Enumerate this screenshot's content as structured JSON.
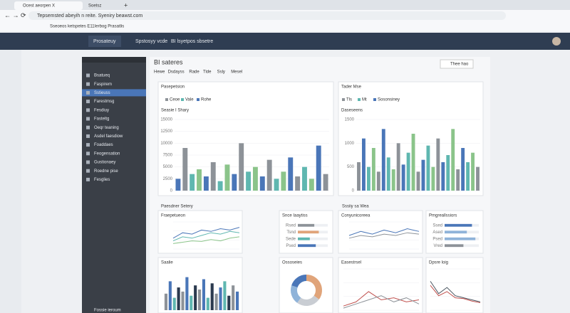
{
  "browser": {
    "tabs": [
      "Ocest aeorpen X",
      "Soetsz",
      "+"
    ],
    "url": "Tepsemsted abeyih  n  reite. Syeniry beawst.com",
    "bookmarks": "Sseoeos ketspetes E11Ierbog Prasatlis"
  },
  "header": {
    "brand": "Prosateuy",
    "nav": [
      "Spstosyy vcde",
      "BI lsyetpos sbsetre"
    ]
  },
  "sidebar": {
    "items": [
      "Bsatueq",
      "Faspirem",
      "Sstieuss",
      "Farestmsg",
      "Fesdiuy",
      "Fasteltg",
      "Oeqr teaning",
      "Asdel faesdiow",
      "Foaddaes",
      "Feogensation",
      "Gustionaey",
      "Roedne pise",
      "Fesglies"
    ],
    "footer": "Fossie ieroum"
  },
  "main": {
    "title": "BI sateres",
    "tabs": [
      "Hewe",
      "Dsdayss",
      "Rade",
      "Tide",
      "Ssly",
      "Mesel"
    ],
    "button": "Thee hao",
    "sections": [
      "Paesdner Setery",
      "Sssiiy sa Wea"
    ]
  },
  "panels": [
    {
      "title": "Pasepetsion",
      "legend": [
        "Ceoe",
        "Vale",
        "Rohe"
      ]
    },
    {
      "title": "Tader Mse",
      "legend": [
        "Tls",
        "Mt",
        "Sosonsiney"
      ]
    }
  ],
  "chart_data": [
    {
      "type": "bar",
      "title": "Seasie I Shary",
      "colors": [
        "#4a76b8",
        "#8d9298",
        "#5fb7b0",
        "#8bc48a"
      ],
      "values": [
        2500,
        9000,
        3500,
        4500,
        3000,
        6000,
        2000,
        5500,
        3500,
        10000,
        4000,
        5000,
        3000,
        6500,
        2500,
        4000,
        7000,
        3000,
        5000,
        2500,
        9500,
        3500
      ],
      "ylim": [
        0,
        15000
      ],
      "yticks": [
        0,
        2500,
        5000,
        7500,
        10000,
        12500,
        15000
      ]
    },
    {
      "type": "bar",
      "title": "Daseseens",
      "colors": [
        "#8d9298",
        "#4a76b8",
        "#5fb7b0",
        "#8bc48a"
      ],
      "values": [
        600,
        1100,
        500,
        900,
        400,
        1300,
        700,
        450,
        1000,
        550,
        800,
        1200,
        400,
        650,
        950,
        500,
        1100,
        600,
        750,
        1300,
        450,
        900,
        600,
        800,
        500
      ],
      "ylim": [
        0,
        1500
      ],
      "yticks": [
        0,
        500,
        1000,
        1500
      ]
    },
    {
      "type": "line",
      "title": "Fraepetueon",
      "ylim": [
        0,
        100
      ],
      "series": [
        {
          "name": "Ceoe",
          "color": "#4a76b8",
          "values": [
            40,
            60,
            55,
            70,
            65,
            75,
            70,
            80
          ]
        },
        {
          "name": "Vale",
          "color": "#5fb7b0",
          "values": [
            30,
            45,
            40,
            50,
            60,
            55,
            65,
            60
          ]
        },
        {
          "name": "Rohe",
          "color": "#8bc48a",
          "values": [
            20,
            25,
            30,
            28,
            35,
            30,
            40,
            45
          ]
        }
      ]
    },
    {
      "type": "hbar",
      "title": "Snce Iaaytiss",
      "categories": [
        "Rsed",
        "Tsnd",
        "Sede",
        "Psed"
      ],
      "values": [
        55,
        70,
        40,
        60
      ],
      "colors": [
        "#8d9298",
        "#e0a47a",
        "#5fb7b0",
        "#4a76b8"
      ],
      "xlim": [
        0,
        100
      ]
    },
    {
      "type": "line",
      "title": "Conyunicoreea",
      "ylim": [
        0,
        100
      ],
      "series": [
        {
          "name": "Tls",
          "color": "#4a76b8",
          "values": [
            50,
            65,
            55,
            70,
            60,
            75,
            65
          ]
        },
        {
          "name": "Mt",
          "color": "#8d9298",
          "values": [
            40,
            50,
            45,
            55,
            50,
            60,
            55
          ]
        }
      ]
    },
    {
      "type": "hbar",
      "title": "Pmgreallssiors",
      "categories": [
        "Ssed",
        "Ased",
        "Psed",
        "Vred"
      ],
      "values": [
        80,
        65,
        90,
        55
      ],
      "colors": [
        "#4a76b8",
        "#8fb3d9",
        "#8fb3d9",
        "#8d9298"
      ],
      "xlim": [
        0,
        100
      ]
    },
    {
      "type": "bar",
      "title": "Saalie",
      "colors": [
        "#8d9298",
        "#4a76b8",
        "#5fb7b0",
        "#2b3a4f"
      ],
      "values": [
        40,
        70,
        30,
        55,
        45,
        80,
        35,
        60,
        50,
        75,
        30,
        65,
        40,
        55,
        70,
        35,
        60,
        45
      ],
      "ylim": [
        0,
        100
      ]
    },
    {
      "type": "pie",
      "title": "Ossoseies",
      "values": [
        35,
        25,
        20,
        20
      ],
      "colors": [
        "#e0a47a",
        "#c9cdd3",
        "#8fb3d9",
        "#4a76b8"
      ]
    },
    {
      "type": "line",
      "title": "Easestrsel",
      "ylim": [
        0,
        100
      ],
      "series": [
        {
          "name": "Tls",
          "color": "#c0504d",
          "values": [
            10,
            20,
            45,
            25,
            30,
            20,
            25
          ]
        },
        {
          "name": "Mt",
          "color": "#8d9298",
          "values": [
            5,
            15,
            25,
            35,
            20,
            30,
            15
          ]
        }
      ]
    },
    {
      "type": "line",
      "title": "Dpsre loig",
      "ylim": [
        0,
        100
      ],
      "series": [
        {
          "name": "Tls",
          "color": "#4a5560",
          "values": [
            70,
            40,
            55,
            35,
            30,
            25,
            20
          ]
        },
        {
          "name": "Mt",
          "color": "#c0504d",
          "values": [
            60,
            35,
            45,
            30,
            28,
            22,
            18
          ]
        }
      ]
    }
  ]
}
